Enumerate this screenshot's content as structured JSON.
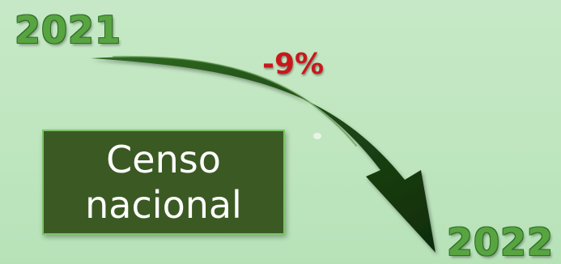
{
  "start_year": "2021",
  "end_year": "2022",
  "change": "-9%",
  "label": {
    "line1": "Censo",
    "line2": "nacional"
  },
  "colors": {
    "background": "#bfe6bf",
    "year_text": "#58a441",
    "change_text": "#c8181c",
    "arrow": "#1e4a16",
    "label_box": "#3b5a23",
    "label_border": "#7cc36a"
  },
  "icons": [
    "downward-curved-arrow"
  ]
}
